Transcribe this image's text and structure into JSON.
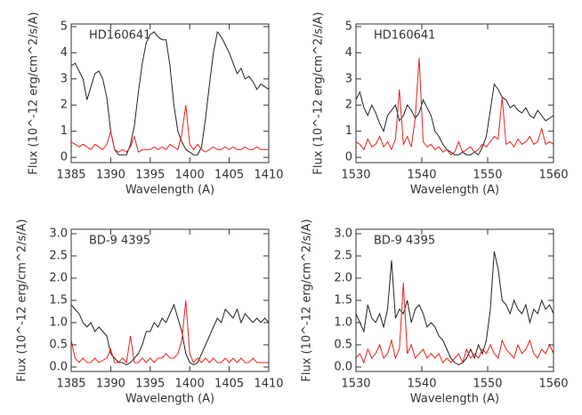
{
  "chart_data": [
    {
      "type": "line",
      "annotation": "HD160641",
      "xlabel": "Wavelength (A)",
      "ylabel": "Flux (10^-12 erg/cm^2/s/A)",
      "xlim": [
        1385,
        1410
      ],
      "xticks": [
        1385,
        1390,
        1395,
        1400,
        1405,
        1410
      ],
      "ylim": [
        -0.2,
        5.1
      ],
      "yticks": [
        0,
        1,
        2,
        3,
        4,
        5
      ],
      "x": [
        1385,
        1385.5,
        1386,
        1386.5,
        1387,
        1387.5,
        1388,
        1388.5,
        1389,
        1389.5,
        1390,
        1390.5,
        1391,
        1391.5,
        1392,
        1392.5,
        1393,
        1393.5,
        1394,
        1394.5,
        1395,
        1395.5,
        1396,
        1396.5,
        1397,
        1397.5,
        1398,
        1398.5,
        1399,
        1399.5,
        1400,
        1400.5,
        1401,
        1401.5,
        1402,
        1402.5,
        1403,
        1403.5,
        1404,
        1404.5,
        1405,
        1405.5,
        1406,
        1406.5,
        1407,
        1407.5,
        1408,
        1408.5,
        1409,
        1409.5,
        1410
      ],
      "series": [
        {
          "color": "#222222",
          "values": [
            3.5,
            3.6,
            3.3,
            3.0,
            2.2,
            2.7,
            3.2,
            3.3,
            3.0,
            2.3,
            1.0,
            0.3,
            0.1,
            0.1,
            0.1,
            0.5,
            1.2,
            2.5,
            3.6,
            4.4,
            4.7,
            4.8,
            4.6,
            4.5,
            4.5,
            3.5,
            2.0,
            1.0,
            0.6,
            0.3,
            0.2,
            0.1,
            0.1,
            0.4,
            1.5,
            2.8,
            4.0,
            4.8,
            4.6,
            4.3,
            4.0,
            3.6,
            3.2,
            3.4,
            3.0,
            3.1,
            2.9,
            2.6,
            2.8,
            2.7,
            2.6
          ]
        },
        {
          "color": "#e8241c",
          "values": [
            0.6,
            0.5,
            0.4,
            0.5,
            0.4,
            0.3,
            0.5,
            0.4,
            0.3,
            0.5,
            1.0,
            0.3,
            0.2,
            0.3,
            0.2,
            0.4,
            0.8,
            0.2,
            0.3,
            0.3,
            0.3,
            0.4,
            0.3,
            0.4,
            0.3,
            0.5,
            0.4,
            0.3,
            0.9,
            2.0,
            0.5,
            0.3,
            0.5,
            0.3,
            0.2,
            0.3,
            0.4,
            0.3,
            0.3,
            0.4,
            0.3,
            0.4,
            0.3,
            0.3,
            0.4,
            0.3,
            0.3,
            0.4,
            0.3,
            0.3,
            0.3
          ]
        }
      ]
    },
    {
      "type": "line",
      "annotation": "HD160641",
      "xlabel": "Wavelength (A)",
      "ylabel": "Flux (10^-12 erg/cm^2/s/A)",
      "xlim": [
        1530,
        1560
      ],
      "xticks": [
        1530,
        1540,
        1550,
        1560
      ],
      "ylim": [
        -0.2,
        5.1
      ],
      "yticks": [
        0,
        1,
        2,
        3,
        4,
        5
      ],
      "x": [
        1530,
        1530.6,
        1531.2,
        1531.8,
        1532.4,
        1533,
        1533.6,
        1534.2,
        1534.8,
        1535.4,
        1536,
        1536.6,
        1537.2,
        1537.8,
        1538.4,
        1539,
        1539.6,
        1540.2,
        1540.8,
        1541.4,
        1542,
        1542.6,
        1543.2,
        1543.8,
        1544.4,
        1545,
        1545.6,
        1546.2,
        1546.8,
        1547.4,
        1548,
        1548.6,
        1549.2,
        1549.8,
        1550.4,
        1551,
        1551.6,
        1552.2,
        1552.8,
        1553.4,
        1554,
        1554.6,
        1555.2,
        1555.8,
        1556.4,
        1557,
        1557.6,
        1558.2,
        1558.8,
        1559.4,
        1560
      ],
      "series": [
        {
          "color": "#222222",
          "values": [
            2.2,
            2.5,
            1.9,
            1.6,
            2.0,
            1.7,
            1.3,
            1.0,
            1.6,
            1.8,
            2.0,
            1.4,
            1.6,
            2.0,
            1.8,
            1.5,
            1.7,
            2.2,
            1.9,
            1.6,
            1.0,
            0.8,
            0.5,
            0.3,
            0.2,
            0.1,
            0.1,
            0.2,
            0.1,
            0.1,
            0.2,
            0.1,
            0.4,
            0.8,
            1.8,
            2.8,
            2.6,
            2.3,
            2.2,
            1.9,
            2.0,
            1.8,
            1.7,
            1.9,
            1.6,
            1.5,
            1.8,
            1.6,
            1.4,
            1.5,
            1.6
          ]
        },
        {
          "color": "#e8241c",
          "values": [
            0.6,
            0.5,
            0.3,
            0.7,
            0.4,
            0.5,
            0.8,
            0.4,
            0.6,
            0.3,
            0.7,
            2.6,
            0.5,
            0.8,
            0.4,
            1.5,
            3.8,
            0.6,
            0.4,
            0.5,
            0.3,
            0.4,
            0.2,
            0.3,
            0.1,
            0.2,
            0.6,
            0.2,
            0.3,
            0.4,
            0.2,
            0.3,
            0.5,
            0.4,
            0.6,
            0.8,
            0.7,
            2.3,
            0.5,
            0.6,
            0.4,
            0.7,
            0.5,
            0.6,
            0.8,
            0.5,
            0.6,
            1.1,
            0.5,
            0.6,
            0.5
          ]
        }
      ]
    },
    {
      "type": "line",
      "annotation": "BD-9 4395",
      "xlabel": "Wavelength (A)",
      "ylabel": "Flux (10^-12 erg/cm^2/s/A)",
      "xlim": [
        1385,
        1410
      ],
      "xticks": [
        1385,
        1390,
        1395,
        1400,
        1405,
        1410
      ],
      "ylim": [
        -0.1,
        3.1
      ],
      "yticks": [
        {
          "value": 0,
          "label": "0.0"
        },
        0.5,
        {
          "value": 1,
          "label": "1.0"
        },
        1.5,
        {
          "value": 2,
          "label": "2.0"
        },
        2.5,
        {
          "value": 3,
          "label": "3.0"
        }
      ],
      "x": [
        1385,
        1385.5,
        1386,
        1386.5,
        1387,
        1387.5,
        1388,
        1388.5,
        1389,
        1389.5,
        1390,
        1390.5,
        1391,
        1391.5,
        1392,
        1392.5,
        1393,
        1393.5,
        1394,
        1394.5,
        1395,
        1395.5,
        1396,
        1396.5,
        1397,
        1397.5,
        1398,
        1398.5,
        1399,
        1399.5,
        1400,
        1400.5,
        1401,
        1401.5,
        1402,
        1402.5,
        1403,
        1403.5,
        1404,
        1404.5,
        1405,
        1405.5,
        1406,
        1406.5,
        1407,
        1407.5,
        1408,
        1408.5,
        1409,
        1409.5,
        1410
      ],
      "series": [
        {
          "color": "#222222",
          "values": [
            1.4,
            1.3,
            1.2,
            1.0,
            0.9,
            1.0,
            0.8,
            0.9,
            0.8,
            0.7,
            0.3,
            0.2,
            0.1,
            0.1,
            0.05,
            0.1,
            0.2,
            0.3,
            0.5,
            0.8,
            0.8,
            1.0,
            0.9,
            1.1,
            1.0,
            1.2,
            1.4,
            1.1,
            0.8,
            0.3,
            0.1,
            0.05,
            0.1,
            0.3,
            0.5,
            0.7,
            0.9,
            1.1,
            1.0,
            1.3,
            1.2,
            1.1,
            1.3,
            1.0,
            1.2,
            1.1,
            1.0,
            1.1,
            1.0,
            1.1,
            1.0
          ]
        },
        {
          "color": "#e8241c",
          "values": [
            0.6,
            0.2,
            0.1,
            0.2,
            0.1,
            0.1,
            0.2,
            0.1,
            0.15,
            0.2,
            0.4,
            0.1,
            0.1,
            0.2,
            0.1,
            0.7,
            0.1,
            0.1,
            0.2,
            0.1,
            0.2,
            0.1,
            0.2,
            0.2,
            0.3,
            0.2,
            0.2,
            0.3,
            0.6,
            1.5,
            0.3,
            0.1,
            0.2,
            0.1,
            0.2,
            0.1,
            0.2,
            0.1,
            0.1,
            0.2,
            0.1,
            0.2,
            0.1,
            0.2,
            0.1,
            0.1,
            0.2,
            0.1,
            0.1,
            0.1,
            0.1
          ]
        }
      ]
    },
    {
      "type": "line",
      "annotation": "BD-9 4395",
      "xlabel": "Wavelength (A)",
      "ylabel": "Flux (10^-12 erg/cm^2/s/A)",
      "xlim": [
        1530,
        1560
      ],
      "xticks": [
        1530,
        1540,
        1550,
        1560
      ],
      "ylim": [
        -0.1,
        3.1
      ],
      "yticks": [
        {
          "value": 0,
          "label": "0.0"
        },
        0.5,
        {
          "value": 1,
          "label": "1.0"
        },
        1.5,
        {
          "value": 2,
          "label": "2.0"
        },
        2.5,
        {
          "value": 3,
          "label": "3.0"
        }
      ],
      "x": [
        1530,
        1530.6,
        1531.2,
        1531.8,
        1532.4,
        1533,
        1533.6,
        1534.2,
        1534.8,
        1535.4,
        1536,
        1536.6,
        1537.2,
        1537.8,
        1538.4,
        1539,
        1539.6,
        1540.2,
        1540.8,
        1541.4,
        1542,
        1542.6,
        1543.2,
        1543.8,
        1544.4,
        1545,
        1545.6,
        1546.2,
        1546.8,
        1547.4,
        1548,
        1548.6,
        1549.2,
        1549.8,
        1550.4,
        1551,
        1551.6,
        1552.2,
        1552.8,
        1553.4,
        1554,
        1554.6,
        1555.2,
        1555.8,
        1556.4,
        1557,
        1557.6,
        1558.2,
        1558.8,
        1559.4,
        1560
      ],
      "series": [
        {
          "color": "#222222",
          "values": [
            1.2,
            1.0,
            0.8,
            1.4,
            1.1,
            1.0,
            1.2,
            0.9,
            1.3,
            2.4,
            1.1,
            1.3,
            1.2,
            1.5,
            1.0,
            1.3,
            1.4,
            1.2,
            0.9,
            1.0,
            0.9,
            0.7,
            0.6,
            0.4,
            0.2,
            0.1,
            0.05,
            0.1,
            0.2,
            0.4,
            0.2,
            0.5,
            0.3,
            0.6,
            1.3,
            2.6,
            2.2,
            1.5,
            1.4,
            1.2,
            1.5,
            1.3,
            1.2,
            1.4,
            1.0,
            1.3,
            1.2,
            1.5,
            1.3,
            1.4,
            1.2
          ]
        },
        {
          "color": "#e8241c",
          "values": [
            0.2,
            0.3,
            0.1,
            0.4,
            0.2,
            0.3,
            0.5,
            0.2,
            0.3,
            0.6,
            0.2,
            0.4,
            1.9,
            0.3,
            0.5,
            0.2,
            0.3,
            0.4,
            0.2,
            0.3,
            0.2,
            0.3,
            0.1,
            0.2,
            0.1,
            0.2,
            0.3,
            0.1,
            0.4,
            0.2,
            0.3,
            0.2,
            0.4,
            0.3,
            0.5,
            0.3,
            0.2,
            0.6,
            0.4,
            0.3,
            0.2,
            0.5,
            0.3,
            0.4,
            0.6,
            0.3,
            0.2,
            0.4,
            0.3,
            0.5,
            0.3
          ]
        }
      ]
    }
  ]
}
